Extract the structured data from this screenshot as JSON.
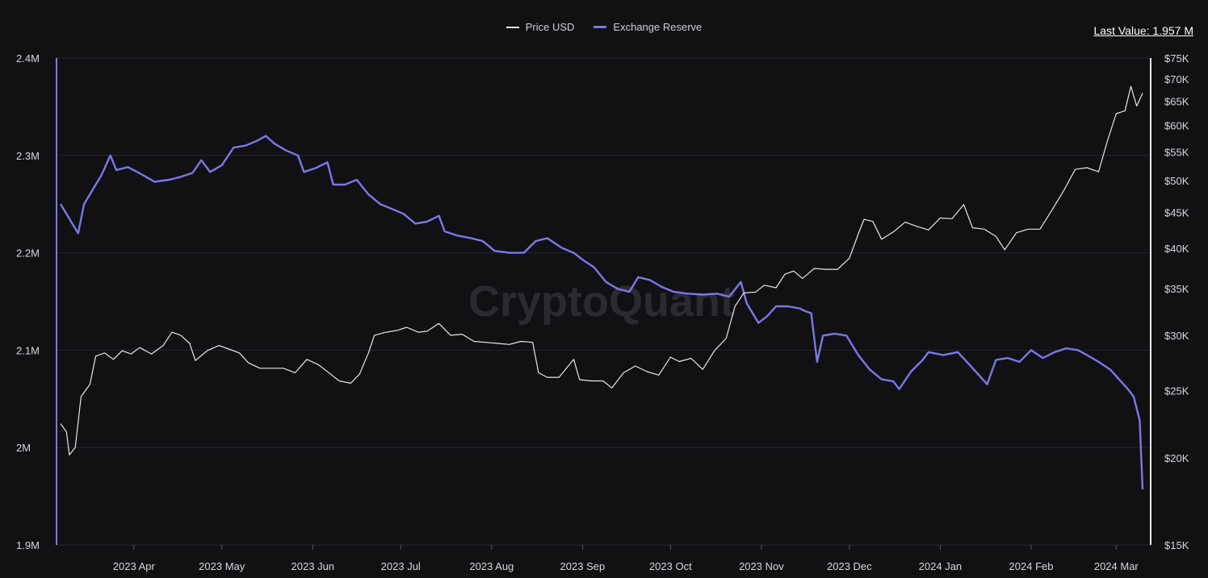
{
  "legend": {
    "price_label": "Price USD",
    "reserve_label": "Exchange Reserve"
  },
  "last_value": "Last Value: 1.957 M",
  "watermark": "CryptoQuant",
  "colors": {
    "background": "#111114",
    "price": "#e8e8ea",
    "reserve": "#7b78e8",
    "grid": "#25252b"
  },
  "chart_data": {
    "type": "line",
    "x_start": "2023-03-07",
    "x_end": "2024-03-10",
    "x_tick_labels": [
      "2023 Apr",
      "2023 May",
      "2023 Jun",
      "2023 Jul",
      "2023 Aug",
      "2023 Sep",
      "2023 Oct",
      "2023 Nov",
      "2023 Dec",
      "2024 Jan",
      "2024 Feb",
      "2024 Mar"
    ],
    "x_tick_dates": [
      "2023-04-01",
      "2023-05-01",
      "2023-06-01",
      "2023-07-01",
      "2023-08-01",
      "2023-09-01",
      "2023-10-01",
      "2023-11-01",
      "2023-12-01",
      "2024-01-01",
      "2024-02-01",
      "2024-03-01"
    ],
    "left_axis": {
      "ylim": [
        1900000,
        2400000
      ],
      "tick_labels": [
        "2.4M",
        "2.3M",
        "2.2M",
        "2.1M",
        "2M",
        "1.9M"
      ],
      "tick_values": [
        2400000,
        2300000,
        2200000,
        2100000,
        2000000,
        1900000
      ]
    },
    "right_axis": {
      "scale": "log",
      "ylim": [
        15000,
        75000
      ],
      "tick_labels": [
        "$75K",
        "$70K",
        "$65K",
        "$60K",
        "$55K",
        "$50K",
        "$45K",
        "$40K",
        "$35K",
        "$30K",
        "$25K",
        "$20K",
        "$15K"
      ],
      "tick_values": [
        75000,
        70000,
        65000,
        60000,
        55000,
        50000,
        45000,
        40000,
        35000,
        30000,
        25000,
        20000,
        15000
      ]
    },
    "series": [
      {
        "name": "Exchange Reserve",
        "axis": "left",
        "points": [
          [
            "2023-03-07",
            2250000
          ],
          [
            "2023-03-09",
            2240000
          ],
          [
            "2023-03-11",
            2230000
          ],
          [
            "2023-03-13",
            2220000
          ],
          [
            "2023-03-15",
            2250000
          ],
          [
            "2023-03-18",
            2265000
          ],
          [
            "2023-03-21",
            2280000
          ],
          [
            "2023-03-24",
            2300000
          ],
          [
            "2023-03-26",
            2285000
          ],
          [
            "2023-03-30",
            2288000
          ],
          [
            "2023-04-04",
            2280000
          ],
          [
            "2023-04-08",
            2273000
          ],
          [
            "2023-04-13",
            2275000
          ],
          [
            "2023-04-17",
            2278000
          ],
          [
            "2023-04-21",
            2282000
          ],
          [
            "2023-04-24",
            2295000
          ],
          [
            "2023-04-27",
            2283000
          ],
          [
            "2023-05-01",
            2290000
          ],
          [
            "2023-05-05",
            2308000
          ],
          [
            "2023-05-09",
            2310000
          ],
          [
            "2023-05-13",
            2315000
          ],
          [
            "2023-05-16",
            2320000
          ],
          [
            "2023-05-19",
            2312000
          ],
          [
            "2023-05-23",
            2305000
          ],
          [
            "2023-05-27",
            2300000
          ],
          [
            "2023-05-29",
            2283000
          ],
          [
            "2023-06-02",
            2287000
          ],
          [
            "2023-06-06",
            2293000
          ],
          [
            "2023-06-08",
            2270000
          ],
          [
            "2023-06-12",
            2270000
          ],
          [
            "2023-06-16",
            2275000
          ],
          [
            "2023-06-20",
            2260000
          ],
          [
            "2023-06-24",
            2250000
          ],
          [
            "2023-06-28",
            2245000
          ],
          [
            "2023-07-02",
            2240000
          ],
          [
            "2023-07-06",
            2230000
          ],
          [
            "2023-07-10",
            2232000
          ],
          [
            "2023-07-14",
            2238000
          ],
          [
            "2023-07-16",
            2222000
          ],
          [
            "2023-07-20",
            2218000
          ],
          [
            "2023-07-25",
            2215000
          ],
          [
            "2023-07-29",
            2212000
          ],
          [
            "2023-08-02",
            2202000
          ],
          [
            "2023-08-07",
            2200000
          ],
          [
            "2023-08-12",
            2200000
          ],
          [
            "2023-08-16",
            2212000
          ],
          [
            "2023-08-20",
            2215000
          ],
          [
            "2023-08-25",
            2205000
          ],
          [
            "2023-08-29",
            2200000
          ],
          [
            "2023-09-01",
            2193000
          ],
          [
            "2023-09-05",
            2185000
          ],
          [
            "2023-09-09",
            2170000
          ],
          [
            "2023-09-13",
            2163000
          ],
          [
            "2023-09-17",
            2160000
          ],
          [
            "2023-09-20",
            2175000
          ],
          [
            "2023-09-24",
            2172000
          ],
          [
            "2023-09-28",
            2165000
          ],
          [
            "2023-10-02",
            2160000
          ],
          [
            "2023-10-07",
            2158000
          ],
          [
            "2023-10-12",
            2157000
          ],
          [
            "2023-10-17",
            2158000
          ],
          [
            "2023-10-21",
            2155000
          ],
          [
            "2023-10-25",
            2170000
          ],
          [
            "2023-10-27",
            2148000
          ],
          [
            "2023-10-31",
            2128000
          ],
          [
            "2023-11-03",
            2135000
          ],
          [
            "2023-11-06",
            2145000
          ],
          [
            "2023-11-10",
            2145000
          ],
          [
            "2023-11-14",
            2143000
          ],
          [
            "2023-11-16",
            2140000
          ],
          [
            "2023-11-18",
            2138000
          ],
          [
            "2023-11-20",
            2088000
          ],
          [
            "2023-11-22",
            2115000
          ],
          [
            "2023-11-26",
            2117000
          ],
          [
            "2023-11-30",
            2115000
          ],
          [
            "2023-12-04",
            2095000
          ],
          [
            "2023-12-08",
            2080000
          ],
          [
            "2023-12-12",
            2070000
          ],
          [
            "2023-12-16",
            2068000
          ],
          [
            "2023-12-18",
            2060000
          ],
          [
            "2023-12-22",
            2078000
          ],
          [
            "2023-12-26",
            2090000
          ],
          [
            "2023-12-28",
            2098000
          ],
          [
            "2024-01-02",
            2095000
          ],
          [
            "2024-01-07",
            2098000
          ],
          [
            "2024-01-11",
            2085000
          ],
          [
            "2024-01-14",
            2075000
          ],
          [
            "2024-01-17",
            2065000
          ],
          [
            "2024-01-20",
            2090000
          ],
          [
            "2024-01-24",
            2092000
          ],
          [
            "2024-01-28",
            2088000
          ],
          [
            "2024-02-01",
            2100000
          ],
          [
            "2024-02-05",
            2092000
          ],
          [
            "2024-02-09",
            2098000
          ],
          [
            "2024-02-13",
            2102000
          ],
          [
            "2024-02-17",
            2100000
          ],
          [
            "2024-02-20",
            2095000
          ],
          [
            "2024-02-24",
            2088000
          ],
          [
            "2024-02-28",
            2080000
          ],
          [
            "2024-03-02",
            2070000
          ],
          [
            "2024-03-05",
            2060000
          ],
          [
            "2024-03-07",
            2052000
          ],
          [
            "2024-03-09",
            2028000
          ],
          [
            "2024-03-10",
            1957000
          ]
        ]
      },
      {
        "name": "Price USD",
        "axis": "right",
        "points": [
          [
            "2023-03-07",
            22400
          ],
          [
            "2023-03-09",
            21800
          ],
          [
            "2023-03-10",
            20200
          ],
          [
            "2023-03-12",
            20700
          ],
          [
            "2023-03-14",
            24500
          ],
          [
            "2023-03-17",
            25500
          ],
          [
            "2023-03-19",
            28000
          ],
          [
            "2023-03-22",
            28300
          ],
          [
            "2023-03-25",
            27700
          ],
          [
            "2023-03-28",
            28500
          ],
          [
            "2023-03-31",
            28200
          ],
          [
            "2023-04-03",
            28800
          ],
          [
            "2023-04-07",
            28200
          ],
          [
            "2023-04-11",
            29000
          ],
          [
            "2023-04-14",
            30300
          ],
          [
            "2023-04-17",
            30000
          ],
          [
            "2023-04-20",
            29200
          ],
          [
            "2023-04-22",
            27600
          ],
          [
            "2023-04-26",
            28500
          ],
          [
            "2023-04-30",
            29000
          ],
          [
            "2023-05-03",
            28700
          ],
          [
            "2023-05-07",
            28300
          ],
          [
            "2023-05-10",
            27400
          ],
          [
            "2023-05-14",
            26900
          ],
          [
            "2023-05-18",
            26900
          ],
          [
            "2023-05-22",
            26900
          ],
          [
            "2023-05-26",
            26500
          ],
          [
            "2023-05-30",
            27700
          ],
          [
            "2023-06-03",
            27200
          ],
          [
            "2023-06-07",
            26400
          ],
          [
            "2023-06-10",
            25800
          ],
          [
            "2023-06-14",
            25600
          ],
          [
            "2023-06-17",
            26400
          ],
          [
            "2023-06-20",
            28300
          ],
          [
            "2023-06-22",
            30000
          ],
          [
            "2023-06-26",
            30300
          ],
          [
            "2023-06-30",
            30500
          ],
          [
            "2023-07-03",
            30800
          ],
          [
            "2023-07-07",
            30300
          ],
          [
            "2023-07-10",
            30400
          ],
          [
            "2023-07-14",
            31200
          ],
          [
            "2023-07-18",
            30000
          ],
          [
            "2023-07-22",
            30100
          ],
          [
            "2023-07-26",
            29400
          ],
          [
            "2023-07-30",
            29300
          ],
          [
            "2023-08-03",
            29200
          ],
          [
            "2023-08-07",
            29100
          ],
          [
            "2023-08-11",
            29400
          ],
          [
            "2023-08-15",
            29300
          ],
          [
            "2023-08-17",
            26500
          ],
          [
            "2023-08-20",
            26100
          ],
          [
            "2023-08-24",
            26100
          ],
          [
            "2023-08-29",
            27700
          ],
          [
            "2023-08-31",
            25900
          ],
          [
            "2023-09-04",
            25800
          ],
          [
            "2023-09-08",
            25800
          ],
          [
            "2023-09-11",
            25200
          ],
          [
            "2023-09-15",
            26500
          ],
          [
            "2023-09-19",
            27100
          ],
          [
            "2023-09-23",
            26600
          ],
          [
            "2023-09-27",
            26300
          ],
          [
            "2023-10-01",
            27900
          ],
          [
            "2023-10-04",
            27500
          ],
          [
            "2023-10-08",
            27800
          ],
          [
            "2023-10-12",
            26800
          ],
          [
            "2023-10-16",
            28500
          ],
          [
            "2023-10-20",
            29700
          ],
          [
            "2023-10-23",
            33000
          ],
          [
            "2023-10-26",
            34500
          ],
          [
            "2023-10-30",
            34600
          ],
          [
            "2023-11-02",
            35400
          ],
          [
            "2023-11-06",
            35100
          ],
          [
            "2023-11-09",
            36700
          ],
          [
            "2023-11-12",
            37100
          ],
          [
            "2023-11-15",
            36200
          ],
          [
            "2023-11-19",
            37400
          ],
          [
            "2023-11-23",
            37300
          ],
          [
            "2023-11-27",
            37300
          ],
          [
            "2023-12-01",
            38700
          ],
          [
            "2023-12-04",
            41900
          ],
          [
            "2023-12-06",
            44000
          ],
          [
            "2023-12-09",
            43700
          ],
          [
            "2023-12-12",
            41200
          ],
          [
            "2023-12-16",
            42200
          ],
          [
            "2023-12-20",
            43600
          ],
          [
            "2023-12-24",
            43000
          ],
          [
            "2023-12-28",
            42500
          ],
          [
            "2024-01-01",
            44200
          ],
          [
            "2024-01-05",
            44100
          ],
          [
            "2024-01-09",
            46200
          ],
          [
            "2024-01-12",
            42800
          ],
          [
            "2024-01-16",
            42600
          ],
          [
            "2024-01-20",
            41600
          ],
          [
            "2024-01-23",
            39800
          ],
          [
            "2024-01-27",
            42100
          ],
          [
            "2024-01-31",
            42600
          ],
          [
            "2024-02-04",
            42600
          ],
          [
            "2024-02-08",
            45300
          ],
          [
            "2024-02-12",
            48300
          ],
          [
            "2024-02-16",
            51900
          ],
          [
            "2024-02-20",
            52200
          ],
          [
            "2024-02-24",
            51500
          ],
          [
            "2024-02-27",
            57000
          ],
          [
            "2024-03-01",
            62400
          ],
          [
            "2024-03-04",
            63000
          ],
          [
            "2024-03-06",
            68300
          ],
          [
            "2024-03-08",
            64000
          ],
          [
            "2024-03-10",
            66800
          ]
        ]
      }
    ]
  }
}
